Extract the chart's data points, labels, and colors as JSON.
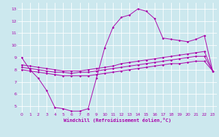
{
  "title": "",
  "xlabel": "Windchill (Refroidissement éolien,°C)",
  "ylabel": "",
  "bg_color": "#cce8ee",
  "line_color": "#aa00aa",
  "marker": "D",
  "marker_size": 1.8,
  "xlim": [
    -0.5,
    23.5
  ],
  "ylim": [
    4.5,
    13.5
  ],
  "xticks": [
    0,
    1,
    2,
    3,
    4,
    5,
    6,
    7,
    8,
    9,
    10,
    11,
    12,
    13,
    14,
    15,
    16,
    17,
    18,
    19,
    20,
    21,
    22,
    23
  ],
  "yticks": [
    5,
    6,
    7,
    8,
    9,
    10,
    11,
    12,
    13
  ],
  "grid_color": "#ffffff",
  "line1_y": [
    9.0,
    8.0,
    7.3,
    6.3,
    4.9,
    4.8,
    4.6,
    4.6,
    4.8,
    7.3,
    9.8,
    11.5,
    12.3,
    12.5,
    13.0,
    12.8,
    12.2,
    10.6,
    10.5,
    10.4,
    10.3,
    10.5,
    10.8,
    7.9
  ],
  "line2_y": [
    8.0,
    7.9,
    7.8,
    7.7,
    7.6,
    7.5,
    7.5,
    7.5,
    7.5,
    7.6,
    7.7,
    7.8,
    7.9,
    8.0,
    8.1,
    8.2,
    8.3,
    8.4,
    8.5,
    8.5,
    8.6,
    8.7,
    8.7,
    7.9
  ],
  "line3_y": [
    8.2,
    8.1,
    8.0,
    7.9,
    7.8,
    7.8,
    7.7,
    7.8,
    7.8,
    7.9,
    8.0,
    8.1,
    8.2,
    8.3,
    8.4,
    8.5,
    8.6,
    8.7,
    8.8,
    8.9,
    9.0,
    9.1,
    9.1,
    7.9
  ],
  "line4_y": [
    8.4,
    8.3,
    8.2,
    8.1,
    8.0,
    7.9,
    7.9,
    7.9,
    8.0,
    8.1,
    8.2,
    8.3,
    8.5,
    8.6,
    8.7,
    8.8,
    8.9,
    9.0,
    9.1,
    9.2,
    9.3,
    9.4,
    9.5,
    7.9
  ]
}
